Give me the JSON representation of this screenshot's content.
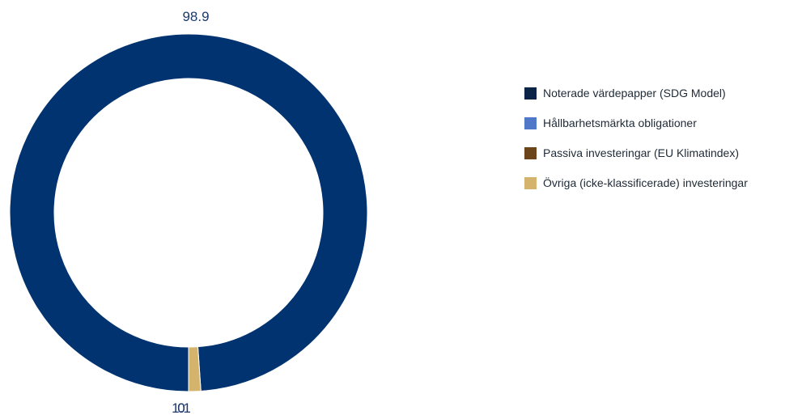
{
  "chart_data": {
    "type": "pie",
    "title": "",
    "categories": [
      "Noterade värdepapper (SDG Model)",
      "Hållbarhetsmärkta obligationer",
      "Passiva investeringar (EU Klimatindex)",
      "Övriga (icke-klassificerade) investeringar"
    ],
    "values": [
      98.9,
      0,
      0,
      1.1
    ],
    "value_labels": [
      "98.9",
      "0",
      "0",
      "1.1"
    ],
    "colors": [
      "#003370",
      "#4472c4",
      "#6b4419",
      "#d4b46c"
    ],
    "legend_swatch_colors": [
      "#0b2445",
      "#4f78c8",
      "#6b4419",
      "#d4b46c"
    ],
    "donut": true,
    "legend_position": "right"
  }
}
